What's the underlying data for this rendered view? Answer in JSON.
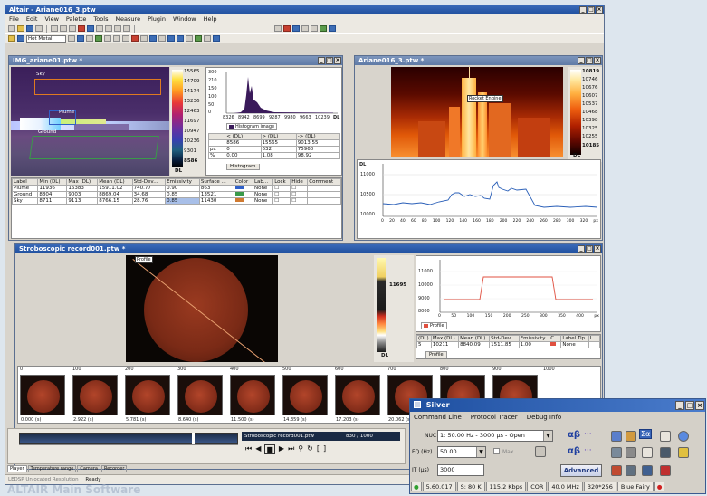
{
  "main_window": {
    "title": "Altair - Ariane016_3.ptw",
    "menu": [
      "File",
      "Edit",
      "View",
      "Palette",
      "Tools",
      "Measure",
      "Plugin",
      "Window",
      "Help"
    ],
    "palette_select": "Hot Metal",
    "status_bar": {
      "left_text": "LEDSP Unlocated Resolution",
      "ready": "Ready"
    },
    "tabs": [
      "Player",
      "Temperature range",
      "Camera",
      "Recorder"
    ]
  },
  "win_left": {
    "title": "IMG_ariane01.ptw *",
    "image_labels": [
      "Sky",
      "Plume",
      "Ground"
    ],
    "colorbar_ticks": [
      "15565",
      "14709",
      "14174",
      "13236",
      "12463",
      "11697",
      "10947",
      "10236",
      "9301",
      "8586",
      "DL"
    ],
    "histogram": {
      "x_ticks": [
        "8326",
        "8942",
        "8699",
        "9287",
        "9980",
        "9663",
        "10239"
      ],
      "x_unit": "DL",
      "y_ticks": [
        "300",
        "210",
        "150",
        "100",
        "50",
        "0"
      ],
      "legend": "Histogram image",
      "stats_headers": [
        "",
        "< (DL)",
        "> (DL)",
        "-> (DL)"
      ],
      "stats_rows": [
        [
          "",
          "8586",
          "15565",
          "9013.55"
        ],
        [
          "px",
          "0",
          "632",
          "75960"
        ],
        [
          "%",
          "0.00",
          "1.08",
          "98.92"
        ]
      ],
      "tab": "Histogram"
    },
    "table": {
      "headers": [
        "Label",
        "Min (DL)",
        "Max (DL)",
        "Mean (DL)",
        "Std-Dev...",
        "Emissivity",
        "Surface ...",
        "Color",
        "Lab...",
        "Lock",
        "Hide",
        "Comment"
      ],
      "rows": [
        [
          "Plume",
          "11936",
          "16383",
          "15911.02",
          "740.77",
          "0.90",
          "863",
          "",
          "None",
          "",
          "",
          ""
        ],
        [
          "Ground",
          "8804",
          "9003",
          "8869.04",
          "34.68",
          "0.85",
          "13521",
          "",
          "None",
          "",
          "",
          ""
        ],
        [
          "Sky",
          "8711",
          "9113",
          "8766.15",
          "28.76",
          "0.85",
          "11430",
          "",
          "None",
          "",
          "",
          ""
        ]
      ],
      "row_colors": [
        "#3060c8",
        "#3a9a4a",
        "#d07a30"
      ]
    }
  },
  "win_right": {
    "title": "Ariane016_3.ptw *",
    "annotation": "Rocket Engine",
    "colorbar_ticks": [
      "10819",
      "10746",
      "10676",
      "10607",
      "10537",
      "10468",
      "10398",
      "10325",
      "10255",
      "10185",
      "DL"
    ],
    "profile": {
      "y_label": "DL",
      "y_ticks": [
        "11000",
        "10500",
        "10000"
      ],
      "x_ticks": [
        "0",
        "20",
        "40",
        "60",
        "80",
        "100",
        "120",
        "140",
        "160",
        "180",
        "200",
        "220",
        "240",
        "260",
        "280",
        "300",
        "320"
      ],
      "x_unit": "px"
    }
  },
  "win_strobo": {
    "title": "Stroboscopic record001.ptw *",
    "annotation": "Profile",
    "colorbar_ticks": [
      "11695",
      "DL"
    ],
    "profile": {
      "y_ticks": [
        "11000",
        "10000",
        "9000",
        "8000"
      ],
      "x_ticks": [
        "0",
        "50",
        "100",
        "150",
        "200",
        "250",
        "300",
        "350",
        "400"
      ],
      "x_unit": "px",
      "legend": "Profile",
      "tab": "Profile"
    },
    "table": {
      "headers": [
        "(DL)",
        "Max (DL)",
        "Mean (DL)",
        "Std-Dev...",
        "Emissivity",
        "C...",
        "Label Tip",
        "L..."
      ],
      "row": [
        "5",
        "10211",
        "8840.09",
        "1511.85",
        "1.00",
        "",
        "None",
        ""
      ]
    },
    "timeline_ticks": [
      "0",
      "100",
      "200",
      "300",
      "400",
      "500",
      "600",
      "700",
      "800",
      "900",
      "1000"
    ],
    "thumb_times": [
      "0.000 (s)",
      "2.922 (s)",
      "5.781 (s)",
      "8.640 (s)",
      "11.500 (s)",
      "14.359 (s)",
      "17.203 (s)",
      "20.062 (s)"
    ],
    "player": {
      "file": "Stroboscopic record001.ptw",
      "frame": "830 / 1000"
    }
  },
  "silver": {
    "title": "Silver",
    "menu": [
      "Command Line",
      "Protocol Tracer",
      "Debug Info"
    ],
    "nuc_label": "NUC",
    "nuc_value": "1: 50.00 Hz - 3000 µs - Open",
    "fq_label": "FQ (Hz)",
    "fq_value": "50.00",
    "max_label": "Max",
    "it_label": "IT (µs)",
    "it_value": "3000",
    "advanced": "Advanced",
    "alpha_beta": "αβ",
    "sigma": "Σα",
    "status": [
      "5.60.017",
      "S: 80 K",
      "115.2 Kbps",
      "COR",
      "40.0 MHz",
      "320*256",
      "Blue Fairy"
    ]
  },
  "caption": "ALTAIR Main Software",
  "accent": "#2056a8"
}
